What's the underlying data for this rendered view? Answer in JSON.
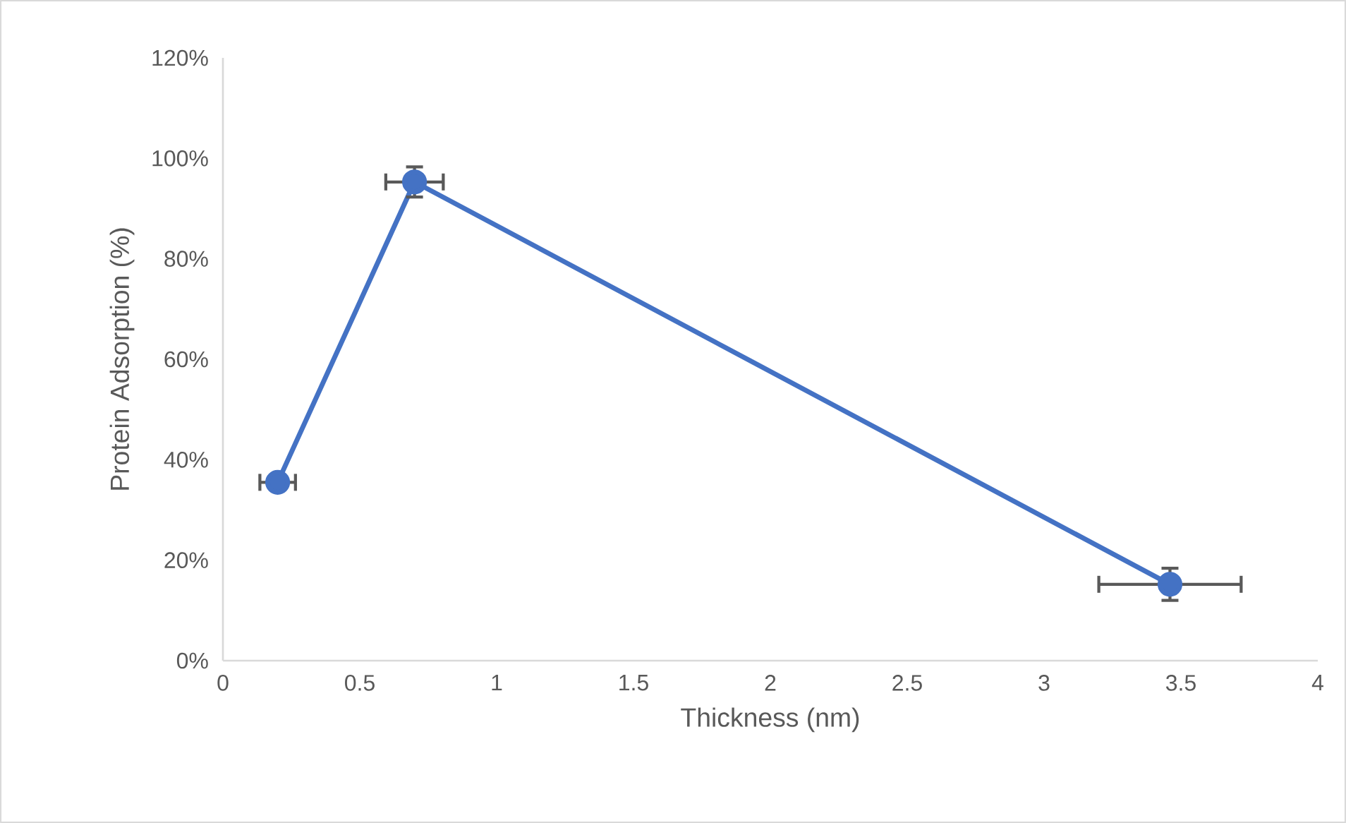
{
  "chart_data": {
    "type": "line",
    "xlabel": "Thickness (nm)",
    "ylabel": "Protein Adsorption (%)",
    "x": [
      0.2,
      0.7,
      3.46
    ],
    "series": [
      {
        "color": "#4472c4",
        "values": [
          35.5,
          95.3,
          15.2
        ],
        "errors": [
          null,
          3,
          3.2
        ],
        "xerrors": [
          0.065,
          0.105,
          0.26
        ]
      }
    ],
    "xlim": [
      0,
      4
    ],
    "xticks": [
      0,
      0.5,
      1,
      1.5,
      2,
      2.5,
      3,
      3.5,
      4
    ],
    "ylim": [
      0,
      120
    ],
    "yticks": [
      {
        "value": 0,
        "label": "0%"
      },
      {
        "value": 20,
        "label": "20%"
      },
      {
        "value": 40,
        "label": "40%"
      },
      {
        "value": 60,
        "label": "60%"
      },
      {
        "value": 80,
        "label": "80%"
      },
      {
        "value": 100,
        "label": "100%"
      },
      {
        "value": 120,
        "label": "120%"
      }
    ],
    "grid": false,
    "legend": false,
    "marker": "circle",
    "line_style": "solid"
  }
}
